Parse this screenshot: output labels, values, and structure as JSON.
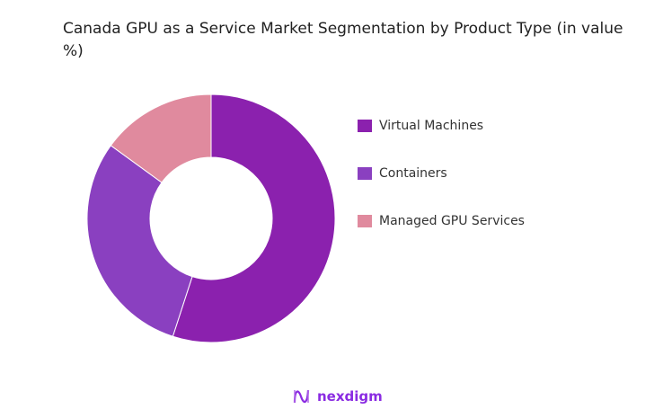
{
  "chart_data": {
    "type": "pie",
    "subtype": "donut",
    "title": "Canada GPU as a Service Market Segmentation by Product Type (in value %)",
    "categories": [
      "Virtual Machines",
      "Containers",
      "Managed GPU Services"
    ],
    "values": [
      55,
      30,
      15
    ],
    "colors": [
      "#8B21AE",
      "#8A40C0",
      "#E08A9E"
    ],
    "legend_position": "right"
  },
  "brand": {
    "name": "nexdigm"
  }
}
